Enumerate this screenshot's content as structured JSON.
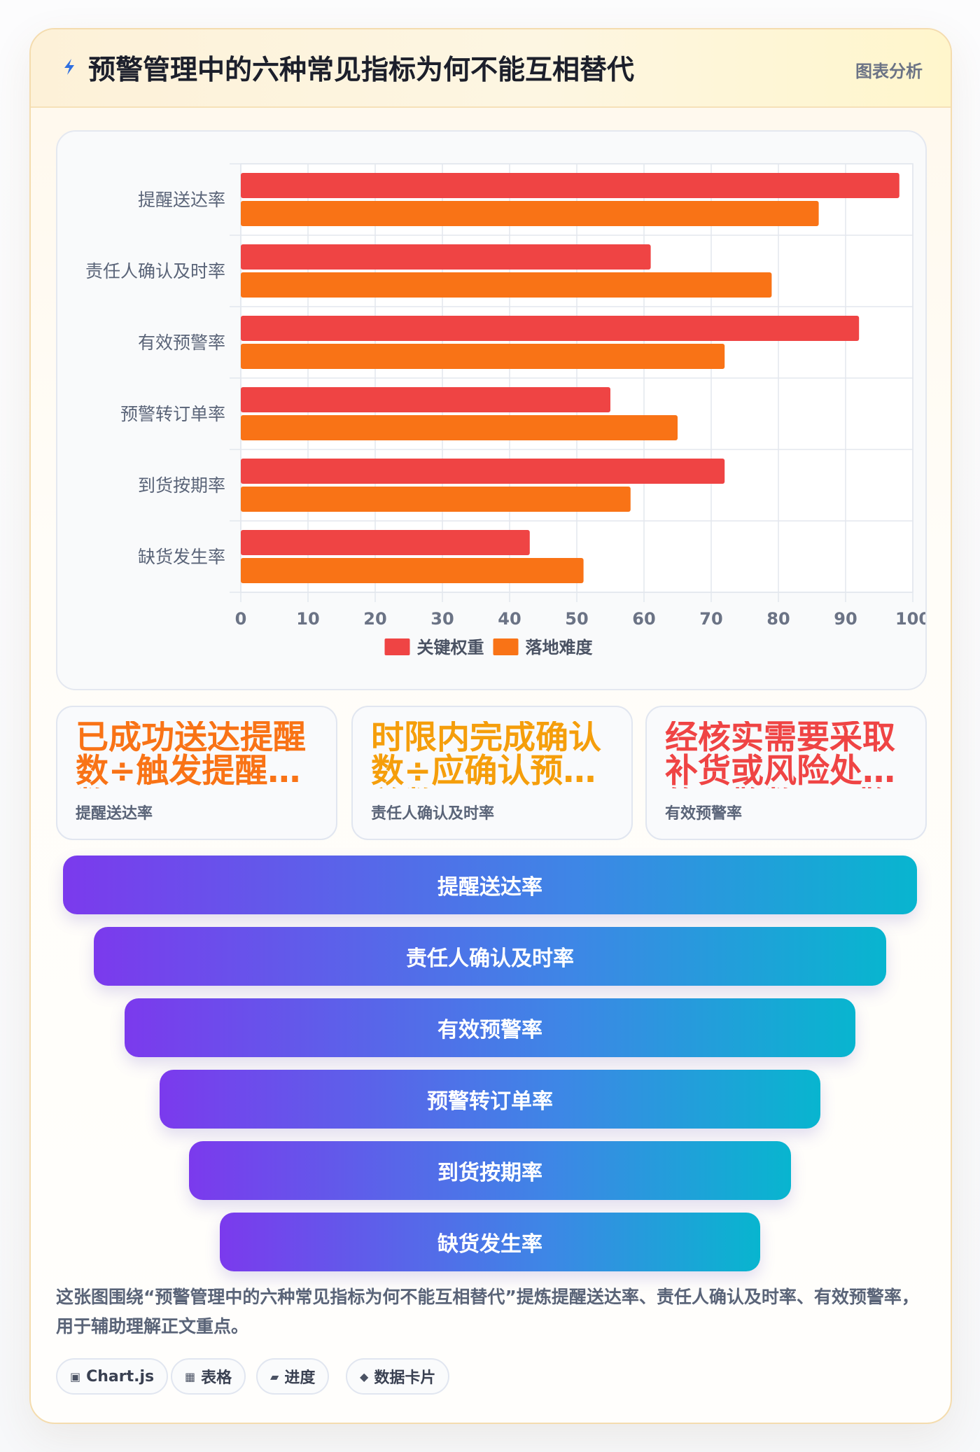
{
  "header": {
    "icon": "lightning-icon",
    "title": "预警管理中的六种常见指标为何不能互相替代",
    "tag": "图表分析"
  },
  "chart_data": {
    "type": "bar",
    "orientation": "horizontal",
    "categories": [
      "提醒送达率",
      "责任人确认及时率",
      "有效预警率",
      "预警转订单率",
      "到货按期率",
      "缺货发生率"
    ],
    "series": [
      {
        "name": "关键权重",
        "color": "#ef4444",
        "values": [
          98,
          61,
          92,
          55,
          72,
          43
        ]
      },
      {
        "name": "落地难度",
        "color": "#f97316",
        "values": [
          86,
          79,
          72,
          65,
          58,
          51
        ]
      }
    ],
    "xlim": [
      0,
      100
    ],
    "xticks": [
      "0",
      "10",
      "20",
      "30",
      "40",
      "50",
      "60",
      "70",
      "80",
      "90",
      "100"
    ],
    "grid": true,
    "legend_position": "bottom"
  },
  "stats": [
    {
      "value": "已成功送达提醒数÷触发提醒总数",
      "label": "提醒送达率",
      "color": "#f97316"
    },
    {
      "value": "时限内完成确认数÷应确认预警总数",
      "label": "责任人确认及时率",
      "color": "#f59e0b"
    },
    {
      "value": "经核实需要采取补货或风险处置的预警数÷预警总数",
      "label": "有效预警率",
      "color": "#ef4444"
    }
  ],
  "funnel": [
    "提醒送达率",
    "责任人确认及时率",
    "有效预警率",
    "预警转订单率",
    "到货按期率",
    "缺货发生率"
  ],
  "summary": "这张图围绕“预警管理中的六种常见指标为何不能互相替代”提炼提醒送达率、责任人确认及时率、有效预警率，用于辅助理解正文重点。",
  "chips": [
    {
      "icon": "▣",
      "icon_name": "chart-icon",
      "label": "Chart.js"
    },
    {
      "icon": "▦",
      "icon_name": "table-icon",
      "label": "表格"
    },
    {
      "icon": "▰",
      "icon_name": "progress-icon",
      "label": "进度"
    },
    {
      "icon": "◆",
      "icon_name": "diamond-icon",
      "label": "数据卡片"
    }
  ]
}
